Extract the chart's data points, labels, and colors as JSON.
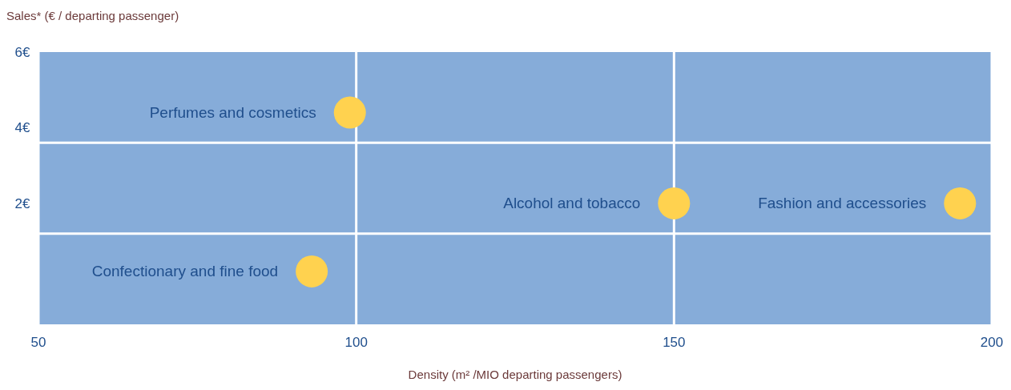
{
  "chart_data": {
    "type": "scatter",
    "ylabel": "Sales* (€ / departing passenger)",
    "xlabel": "Density (m² /MIO departing passengers)",
    "x": [
      99,
      150,
      195,
      93
    ],
    "values": [
      4.4,
      2.0,
      2.0,
      0.2
    ],
    "color": "#ffd24f",
    "marker": "circle",
    "xlim": [
      50,
      200
    ],
    "xticks": [
      50,
      100,
      150,
      200
    ],
    "ylim": [
      -1.2,
      6
    ],
    "yticks": [
      {
        "value": 2,
        "label": "2€"
      },
      {
        "value": 4,
        "label": "4€"
      },
      {
        "value": 6,
        "label": "6€"
      }
    ],
    "grid": "x",
    "ref_lines": [
      {
        "axis": "y",
        "value": 3.6,
        "label": null,
        "color": "#ffffff"
      },
      {
        "axis": "y",
        "value": 1.2,
        "label": null,
        "color": "#ffffff"
      }
    ],
    "annotations": [
      {
        "text": "Perfumes and cosmetics",
        "x": 99,
        "y": 4.4
      },
      {
        "text": "Alcohol and tobacco",
        "x": 150,
        "y": 2.0
      },
      {
        "text": "Fashion and accessories",
        "x": 195,
        "y": 2.0
      },
      {
        "text": "Confectionary and fine food",
        "x": 93,
        "y": 0.2
      }
    ]
  }
}
